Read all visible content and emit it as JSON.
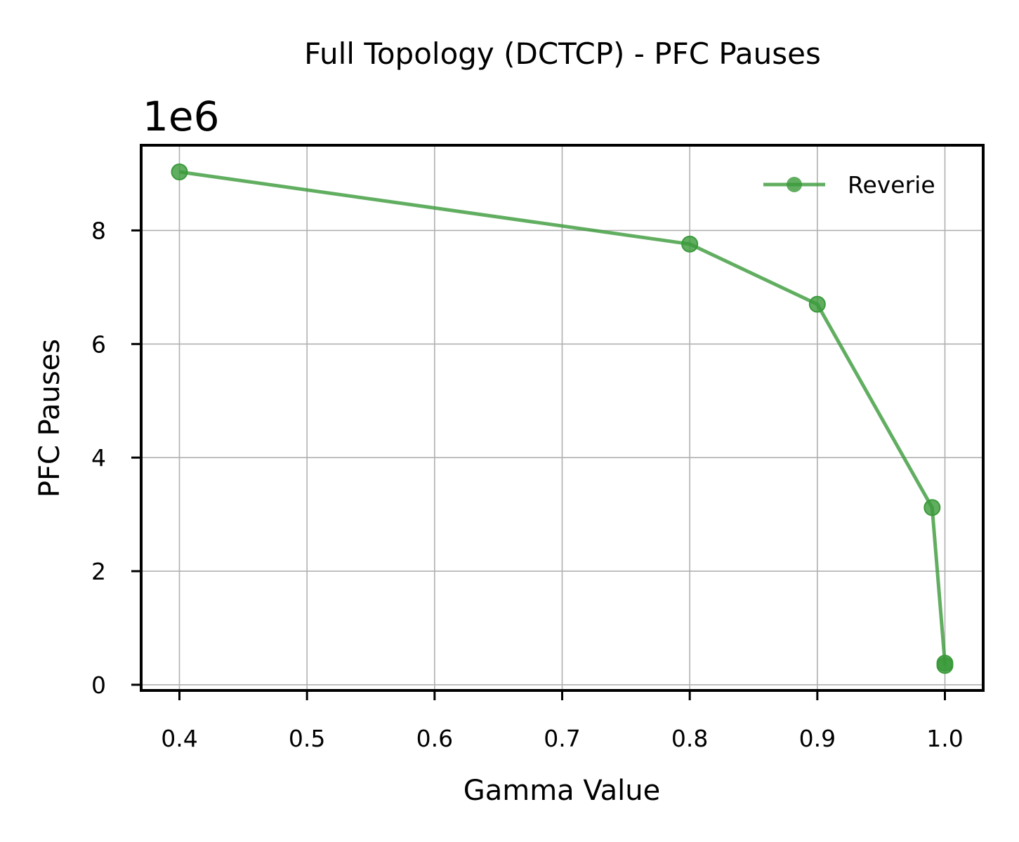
{
  "chart_data": {
    "type": "line",
    "title": "Full Topology (DCTCP) - PFC Pauses",
    "xlabel": "Gamma Value",
    "ylabel": "PFC Pauses",
    "y_offset_label": "1e6",
    "xlim": [
      0.37,
      1.03
    ],
    "ylim": [
      -0.1,
      9.5
    ],
    "x_ticks": [
      0.4,
      0.5,
      0.6,
      0.7,
      0.8,
      0.9,
      1.0
    ],
    "x_tick_labels": [
      "0.4",
      "0.5",
      "0.6",
      "0.7",
      "0.8",
      "0.9",
      "1.0"
    ],
    "y_ticks": [
      0,
      2,
      4,
      6,
      8
    ],
    "y_tick_labels": [
      "0",
      "2",
      "4",
      "6",
      "8"
    ],
    "grid": true,
    "legend_position": "top-right",
    "series": [
      {
        "name": "Reverie",
        "color": "#3a9a3a",
        "marker": "circle",
        "x": [
          0.4,
          0.8,
          0.9,
          0.99,
          1.0,
          1.0
        ],
        "y": [
          9.03,
          7.76,
          6.7,
          3.12,
          0.38,
          0.34
        ]
      }
    ]
  }
}
